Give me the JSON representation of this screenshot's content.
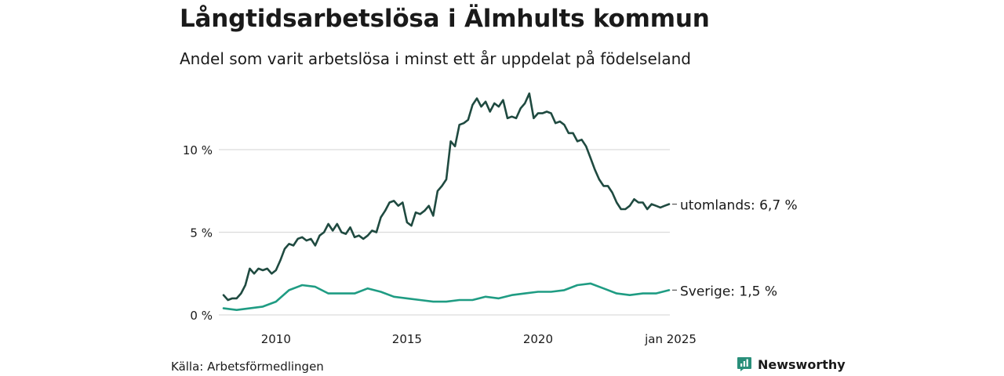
{
  "title": "Långtidsarbetslösa i Älmhults kommun",
  "subtitle": "Andel som varit arbetslösa i minst ett år uppdelat på födelseland",
  "source": "Källa: Arbetsförmedlingen",
  "brand": {
    "name": "Newsworthy",
    "logo_icon": "bar-chart-badge-icon",
    "color": "#2a8f7a"
  },
  "chart_data": {
    "type": "line",
    "x_ticks": [
      "2010",
      "2015",
      "2020",
      "jan 2025"
    ],
    "y_ticks": [
      "0 %",
      "5 %",
      "10 %"
    ],
    "y_tick_values": [
      0,
      5,
      10
    ],
    "ylim": [
      0,
      13.5
    ],
    "xlim": [
      "2008-01",
      "2025-01"
    ],
    "grid": true,
    "series": [
      {
        "name": "utomlands",
        "end_label": "utomlands: 6,7 %",
        "color": "#1f4a40",
        "points": [
          [
            "2008-01",
            1.2
          ],
          [
            "2008-03",
            0.9
          ],
          [
            "2008-05",
            1.0
          ],
          [
            "2008-07",
            1.0
          ],
          [
            "2008-09",
            1.3
          ],
          [
            "2008-11",
            1.8
          ],
          [
            "2009-01",
            2.8
          ],
          [
            "2009-03",
            2.5
          ],
          [
            "2009-05",
            2.8
          ],
          [
            "2009-07",
            2.7
          ],
          [
            "2009-09",
            2.8
          ],
          [
            "2009-11",
            2.5
          ],
          [
            "2010-01",
            2.7
          ],
          [
            "2010-03",
            3.3
          ],
          [
            "2010-05",
            4.0
          ],
          [
            "2010-07",
            4.3
          ],
          [
            "2010-09",
            4.2
          ],
          [
            "2010-11",
            4.6
          ],
          [
            "2011-01",
            4.7
          ],
          [
            "2011-03",
            4.5
          ],
          [
            "2011-05",
            4.6
          ],
          [
            "2011-07",
            4.2
          ],
          [
            "2011-09",
            4.8
          ],
          [
            "2011-11",
            5.0
          ],
          [
            "2012-01",
            5.5
          ],
          [
            "2012-03",
            5.1
          ],
          [
            "2012-05",
            5.5
          ],
          [
            "2012-07",
            5.0
          ],
          [
            "2012-09",
            4.9
          ],
          [
            "2012-11",
            5.3
          ],
          [
            "2013-01",
            4.7
          ],
          [
            "2013-03",
            4.8
          ],
          [
            "2013-05",
            4.6
          ],
          [
            "2013-07",
            4.8
          ],
          [
            "2013-09",
            5.1
          ],
          [
            "2013-11",
            5.0
          ],
          [
            "2014-01",
            5.9
          ],
          [
            "2014-03",
            6.3
          ],
          [
            "2014-05",
            6.8
          ],
          [
            "2014-07",
            6.9
          ],
          [
            "2014-09",
            6.6
          ],
          [
            "2014-11",
            6.8
          ],
          [
            "2015-01",
            5.6
          ],
          [
            "2015-03",
            5.4
          ],
          [
            "2015-05",
            6.2
          ],
          [
            "2015-07",
            6.1
          ],
          [
            "2015-09",
            6.3
          ],
          [
            "2015-11",
            6.6
          ],
          [
            "2016-01",
            6.0
          ],
          [
            "2016-03",
            7.5
          ],
          [
            "2016-05",
            7.8
          ],
          [
            "2016-07",
            8.2
          ],
          [
            "2016-09",
            10.5
          ],
          [
            "2016-11",
            10.2
          ],
          [
            "2017-01",
            11.5
          ],
          [
            "2017-03",
            11.6
          ],
          [
            "2017-05",
            11.8
          ],
          [
            "2017-07",
            12.7
          ],
          [
            "2017-09",
            13.1
          ],
          [
            "2017-11",
            12.6
          ],
          [
            "2018-01",
            12.9
          ],
          [
            "2018-03",
            12.3
          ],
          [
            "2018-05",
            12.8
          ],
          [
            "2018-07",
            12.6
          ],
          [
            "2018-09",
            13.0
          ],
          [
            "2018-11",
            11.9
          ],
          [
            "2019-01",
            12.0
          ],
          [
            "2019-03",
            11.9
          ],
          [
            "2019-05",
            12.5
          ],
          [
            "2019-07",
            12.8
          ],
          [
            "2019-09",
            13.4
          ],
          [
            "2019-11",
            11.9
          ],
          [
            "2020-01",
            12.2
          ],
          [
            "2020-03",
            12.2
          ],
          [
            "2020-05",
            12.3
          ],
          [
            "2020-07",
            12.2
          ],
          [
            "2020-09",
            11.6
          ],
          [
            "2020-11",
            11.7
          ],
          [
            "2021-01",
            11.5
          ],
          [
            "2021-03",
            11.0
          ],
          [
            "2021-05",
            11.0
          ],
          [
            "2021-07",
            10.5
          ],
          [
            "2021-09",
            10.6
          ],
          [
            "2021-11",
            10.2
          ],
          [
            "2022-01",
            9.5
          ],
          [
            "2022-03",
            8.8
          ],
          [
            "2022-05",
            8.2
          ],
          [
            "2022-07",
            7.8
          ],
          [
            "2022-09",
            7.8
          ],
          [
            "2022-11",
            7.4
          ],
          [
            "2023-01",
            6.8
          ],
          [
            "2023-03",
            6.4
          ],
          [
            "2023-05",
            6.4
          ],
          [
            "2023-07",
            6.6
          ],
          [
            "2023-09",
            7.0
          ],
          [
            "2023-11",
            6.8
          ],
          [
            "2024-01",
            6.8
          ],
          [
            "2024-03",
            6.4
          ],
          [
            "2024-05",
            6.7
          ],
          [
            "2024-07",
            6.6
          ],
          [
            "2024-09",
            6.5
          ],
          [
            "2024-11",
            6.6
          ],
          [
            "2025-01",
            6.7
          ]
        ]
      },
      {
        "name": "Sverige",
        "end_label": "Sverige: 1,5 %",
        "color": "#1f9c83",
        "points": [
          [
            "2008-01",
            0.4
          ],
          [
            "2008-07",
            0.3
          ],
          [
            "2009-01",
            0.4
          ],
          [
            "2009-07",
            0.5
          ],
          [
            "2010-01",
            0.8
          ],
          [
            "2010-07",
            1.5
          ],
          [
            "2011-01",
            1.8
          ],
          [
            "2011-07",
            1.7
          ],
          [
            "2012-01",
            1.3
          ],
          [
            "2012-07",
            1.3
          ],
          [
            "2013-01",
            1.3
          ],
          [
            "2013-07",
            1.6
          ],
          [
            "2014-01",
            1.4
          ],
          [
            "2014-07",
            1.1
          ],
          [
            "2015-01",
            1.0
          ],
          [
            "2015-07",
            0.9
          ],
          [
            "2016-01",
            0.8
          ],
          [
            "2016-07",
            0.8
          ],
          [
            "2017-01",
            0.9
          ],
          [
            "2017-07",
            0.9
          ],
          [
            "2018-01",
            1.1
          ],
          [
            "2018-07",
            1.0
          ],
          [
            "2019-01",
            1.2
          ],
          [
            "2019-07",
            1.3
          ],
          [
            "2020-01",
            1.4
          ],
          [
            "2020-07",
            1.4
          ],
          [
            "2021-01",
            1.5
          ],
          [
            "2021-07",
            1.8
          ],
          [
            "2022-01",
            1.9
          ],
          [
            "2022-07",
            1.6
          ],
          [
            "2023-01",
            1.3
          ],
          [
            "2023-07",
            1.2
          ],
          [
            "2024-01",
            1.3
          ],
          [
            "2024-07",
            1.3
          ],
          [
            "2025-01",
            1.5
          ]
        ]
      }
    ]
  }
}
